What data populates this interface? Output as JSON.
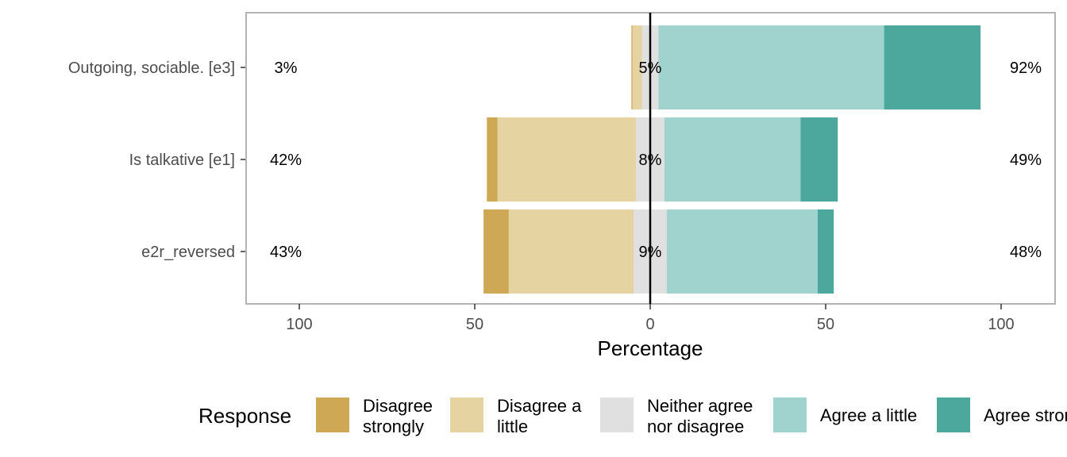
{
  "chart_data": {
    "type": "bar",
    "orientation": "horizontal-diverging",
    "xlabel": "Percentage",
    "xlim": [
      -100,
      100
    ],
    "x_ticks": [
      -100,
      -50,
      0,
      50,
      100
    ],
    "x_tick_labels": [
      "100",
      "50",
      "0",
      "50",
      "100"
    ],
    "grid": false,
    "legend_title": "Response",
    "legend_placement": "bottom",
    "categories": [
      "Outgoing, sociable. [e3]",
      "Is talkative [e1]",
      "e2r_reversed"
    ],
    "series": [
      {
        "name": "Disagree strongly",
        "color": "#CFA855",
        "values": [
          0.3,
          3,
          7.2
        ]
      },
      {
        "name": "Disagree a little",
        "color": "#E6D3A2",
        "values": [
          2.7,
          39.5,
          35.6
        ]
      },
      {
        "name": "Neither agree nor disagree",
        "color": "#E0E0E0",
        "values": [
          4.7,
          8.1,
          9.4
        ]
      },
      {
        "name": "Agree a little",
        "color": "#A0D3CD",
        "values": [
          64.3,
          38.8,
          43.0
        ]
      },
      {
        "name": "Agree strongly",
        "color": "#4CA89C",
        "values": [
          27.5,
          10.6,
          4.6
        ]
      }
    ],
    "left_totals": [
      "3%",
      "42%",
      "43%"
    ],
    "neutral_labels": [
      "5%",
      "8%",
      "9%"
    ],
    "right_totals": [
      "92%",
      "49%",
      "48%"
    ]
  }
}
